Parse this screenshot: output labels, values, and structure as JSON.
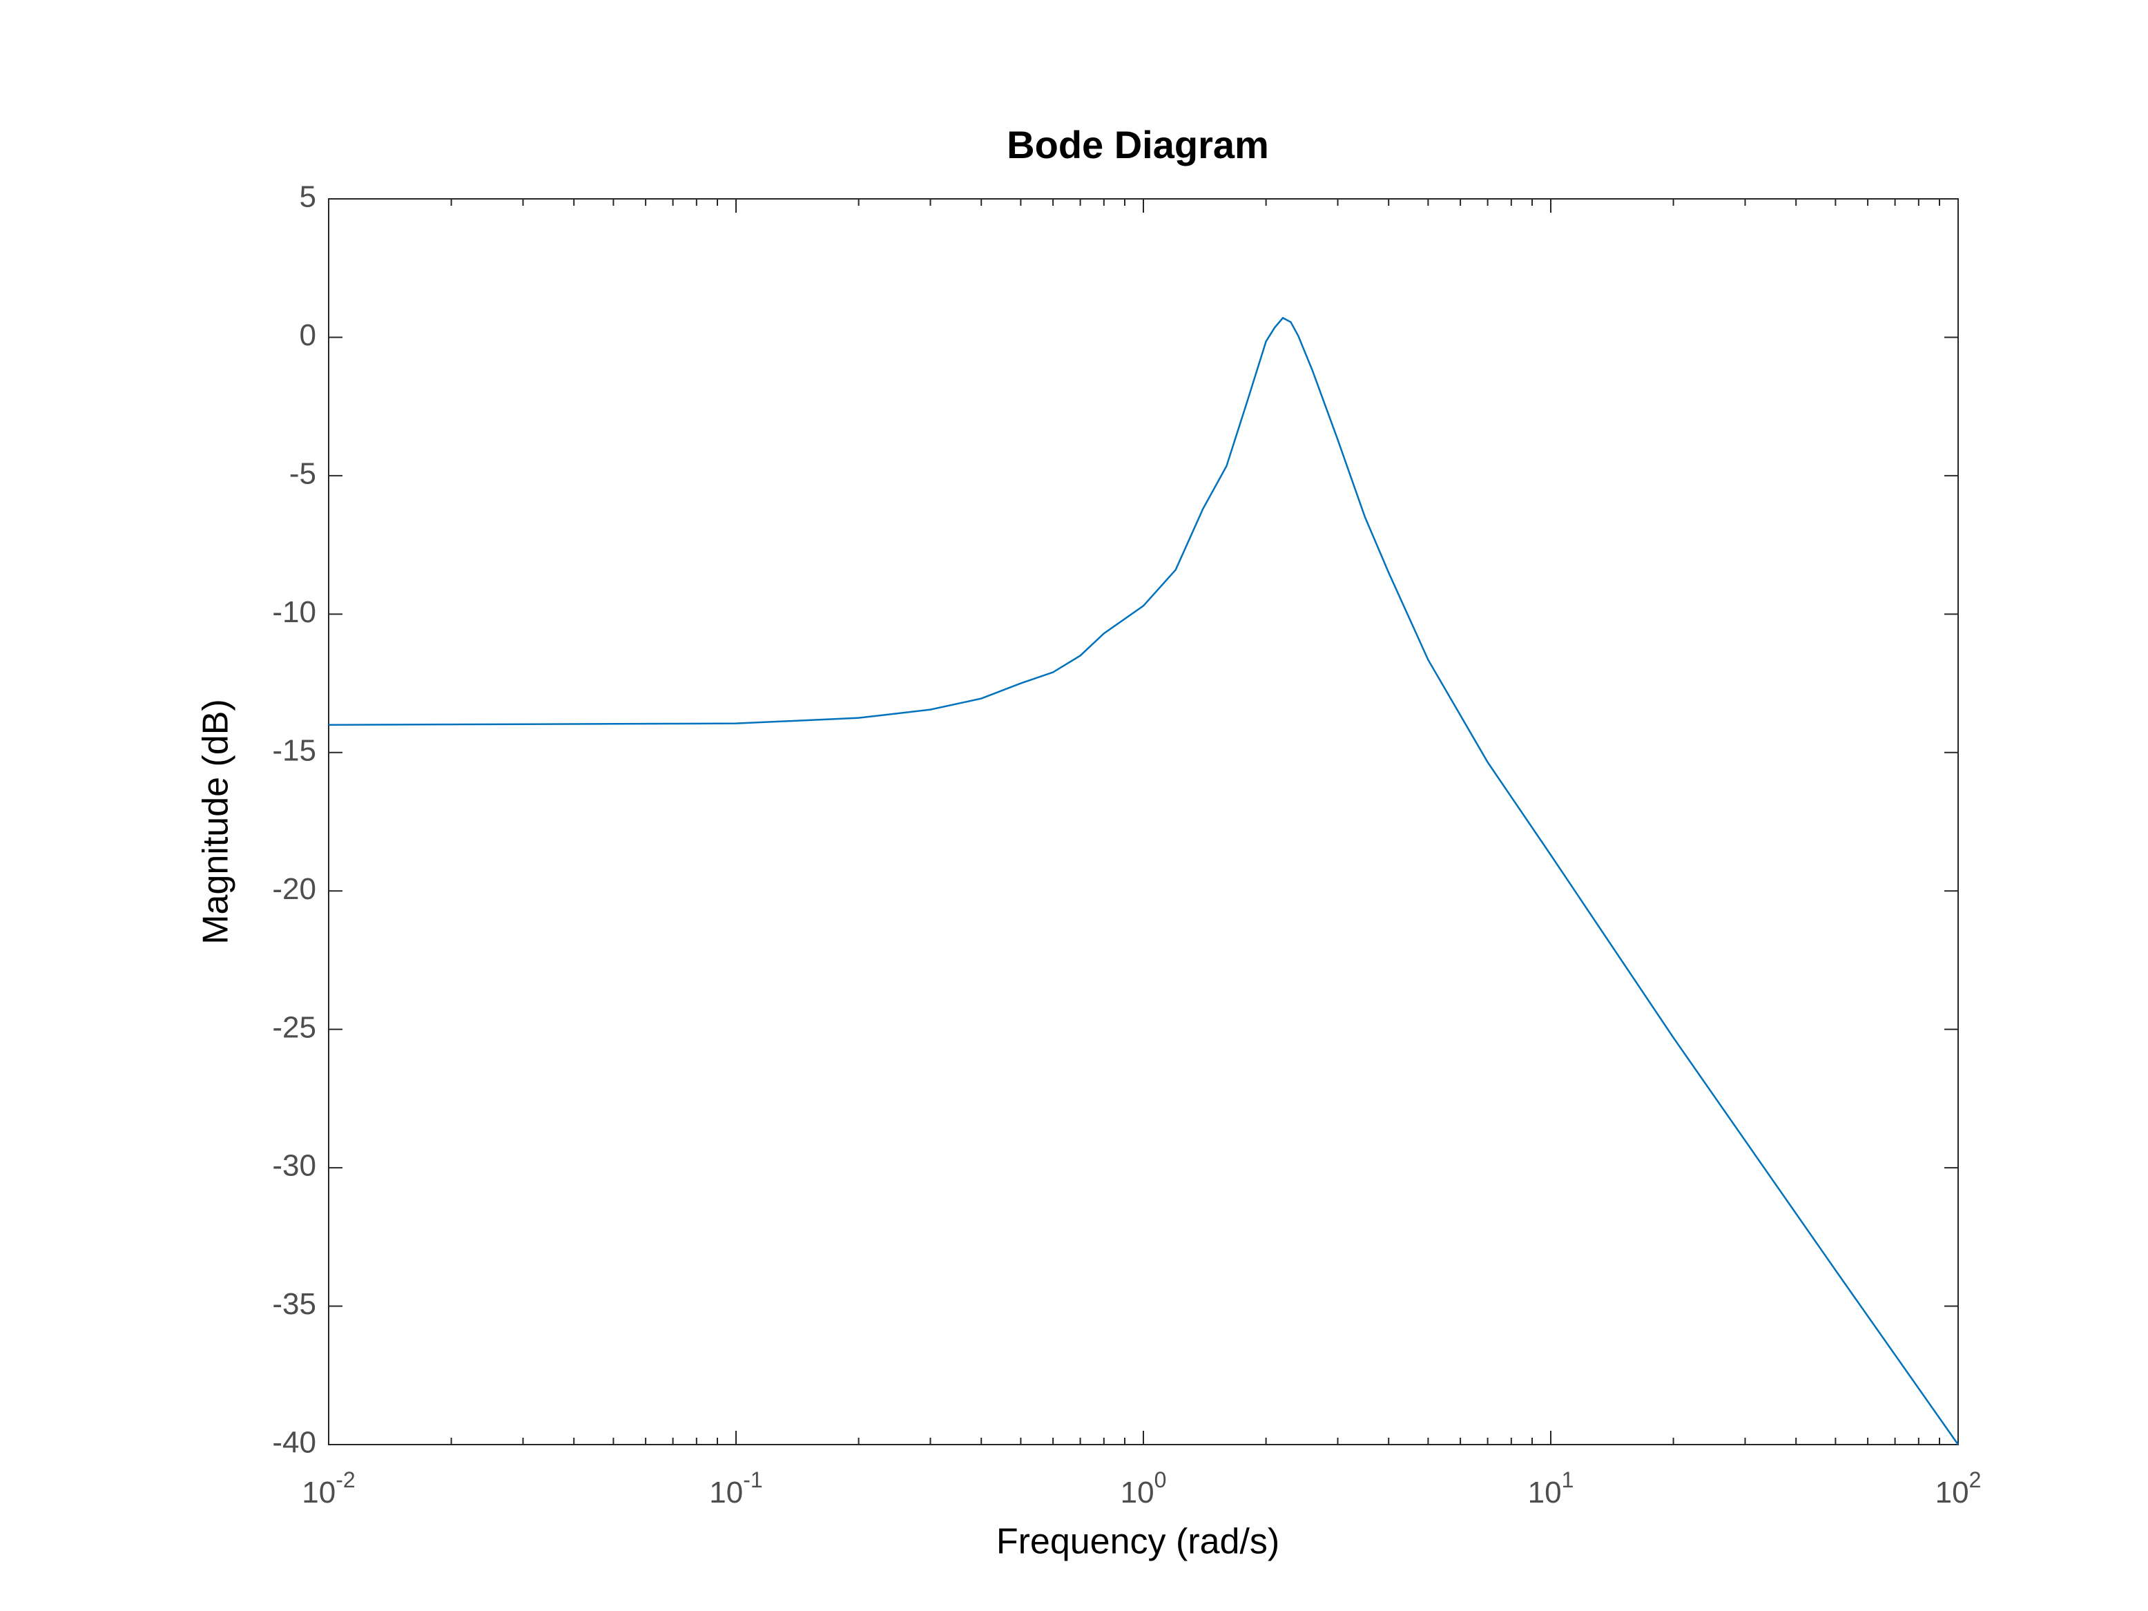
{
  "chart_data": {
    "type": "line",
    "title": "Bode Diagram",
    "x_label": "Frequency  (rad/s)",
    "y_label": "Magnitude (dB)",
    "x_scale": "log",
    "xlim": [
      0.01,
      100
    ],
    "xticks": [
      {
        "value": 0.01,
        "label": "10^-2"
      },
      {
        "value": 0.1,
        "label": "10^-1"
      },
      {
        "value": 1,
        "label": "10^0"
      },
      {
        "value": 10,
        "label": "10^1"
      },
      {
        "value": 100,
        "label": "10^2"
      }
    ],
    "ylim": [
      -40,
      5
    ],
    "yticks": [
      -40,
      -35,
      -30,
      -25,
      -20,
      -15,
      -10,
      -5,
      0,
      5
    ],
    "grid": false,
    "x": [
      0.01,
      0.1,
      0.2,
      0.3,
      0.4,
      0.5,
      0.6,
      0.7,
      0.8,
      1.0,
      1.2,
      1.4,
      1.6,
      1.8,
      2.0,
      2.1,
      2.2,
      2.3,
      2.4,
      2.6,
      3,
      3.5,
      4,
      5,
      7,
      10,
      20,
      50,
      100
    ],
    "series": [
      {
        "color": "#0072bd",
        "values": [
          -14,
          -13.95,
          -13.75,
          -13.45,
          -13.05,
          -12.5,
          -12.1,
          -11.5,
          -10.7,
          -9.7,
          -8.4,
          -6.2,
          -4.65,
          -2.3,
          -0.15,
          0.35,
          0.7,
          0.55,
          0.05,
          -1.2,
          -3.7,
          -6.5,
          -8.5,
          -11.65,
          -15.35,
          -18.7,
          -25.3,
          -33.7,
          -40
        ]
      }
    ]
  }
}
